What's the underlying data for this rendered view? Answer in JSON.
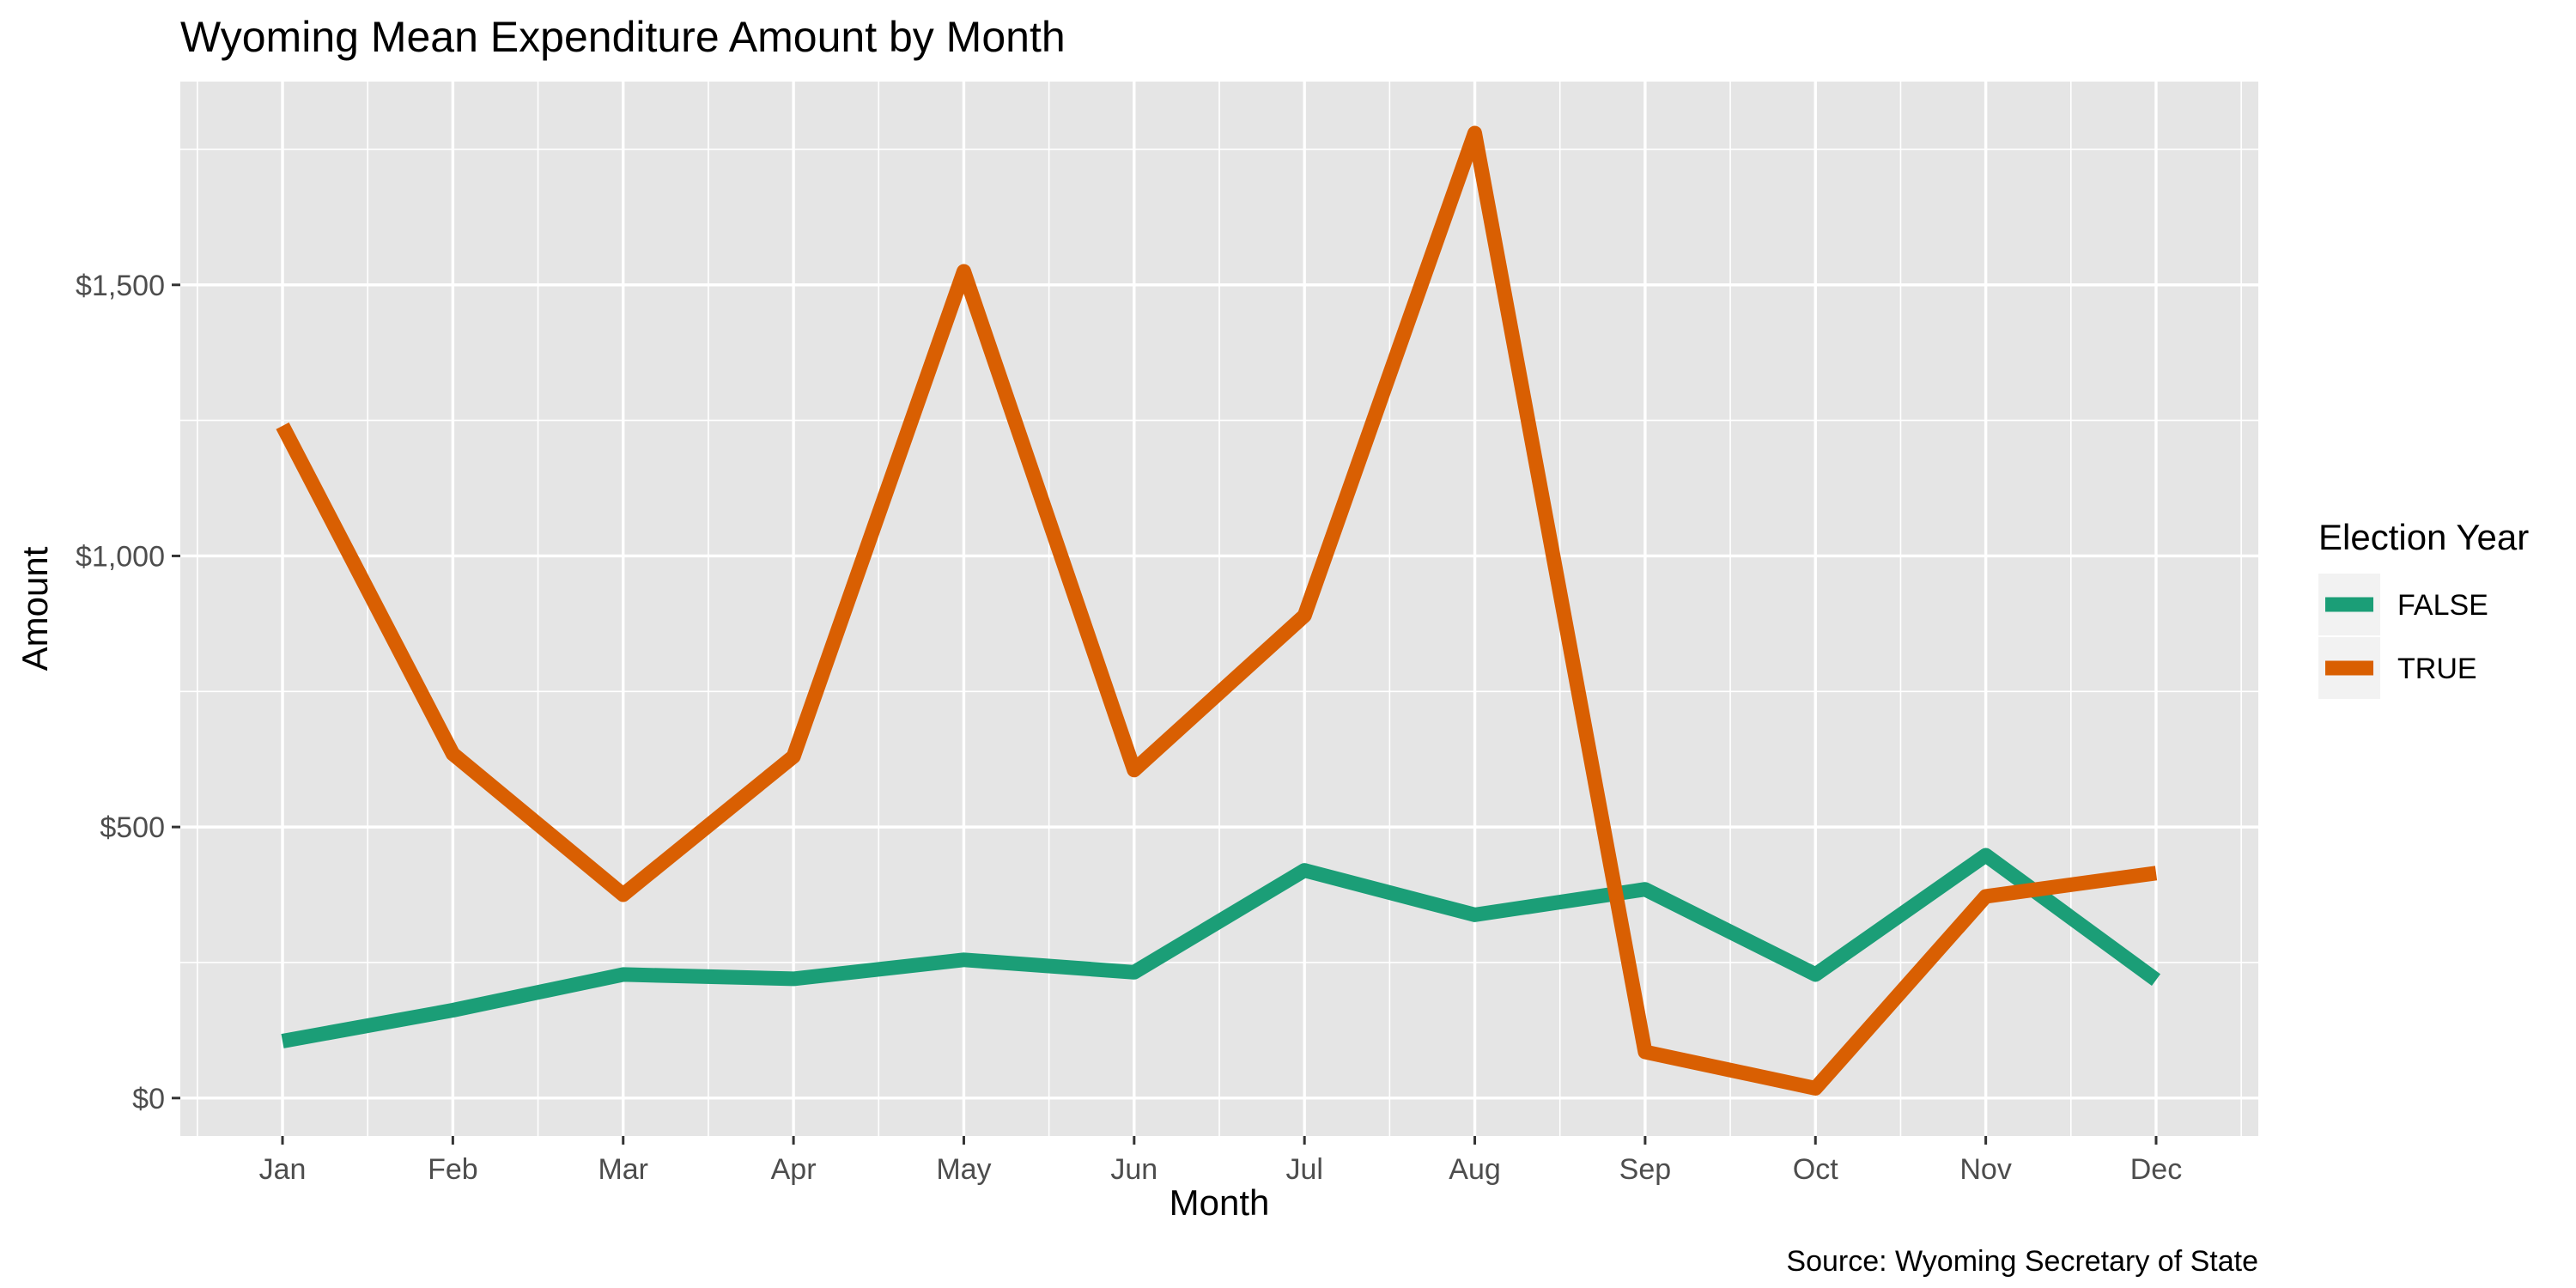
{
  "chart_data": {
    "type": "line",
    "title": "Wyoming Mean Expenditure Amount by Month",
    "xlabel": "Month",
    "ylabel": "Amount",
    "caption": "Source: Wyoming Secretary of State",
    "categories": [
      "Jan",
      "Feb",
      "Mar",
      "Apr",
      "May",
      "Jun",
      "Jul",
      "Aug",
      "Sep",
      "Oct",
      "Nov",
      "Dec"
    ],
    "y_ticks": [
      0,
      500,
      1000,
      1500
    ],
    "y_tick_labels": [
      "$0",
      "$500",
      "$1,000",
      "$1,500"
    ],
    "ylim": [
      -70,
      1875
    ],
    "grid": true,
    "legend": {
      "title": "Election Year",
      "position": "right"
    },
    "series": [
      {
        "name": "FALSE",
        "color": "#1b9e77",
        "values": [
          105,
          162,
          228,
          220,
          255,
          232,
          420,
          338,
          385,
          228,
          448,
          218
        ]
      },
      {
        "name": "TRUE",
        "color": "#d95f02",
        "values": [
          1240,
          635,
          375,
          630,
          1525,
          605,
          890,
          1780,
          85,
          18,
          372,
          415
        ]
      }
    ]
  }
}
